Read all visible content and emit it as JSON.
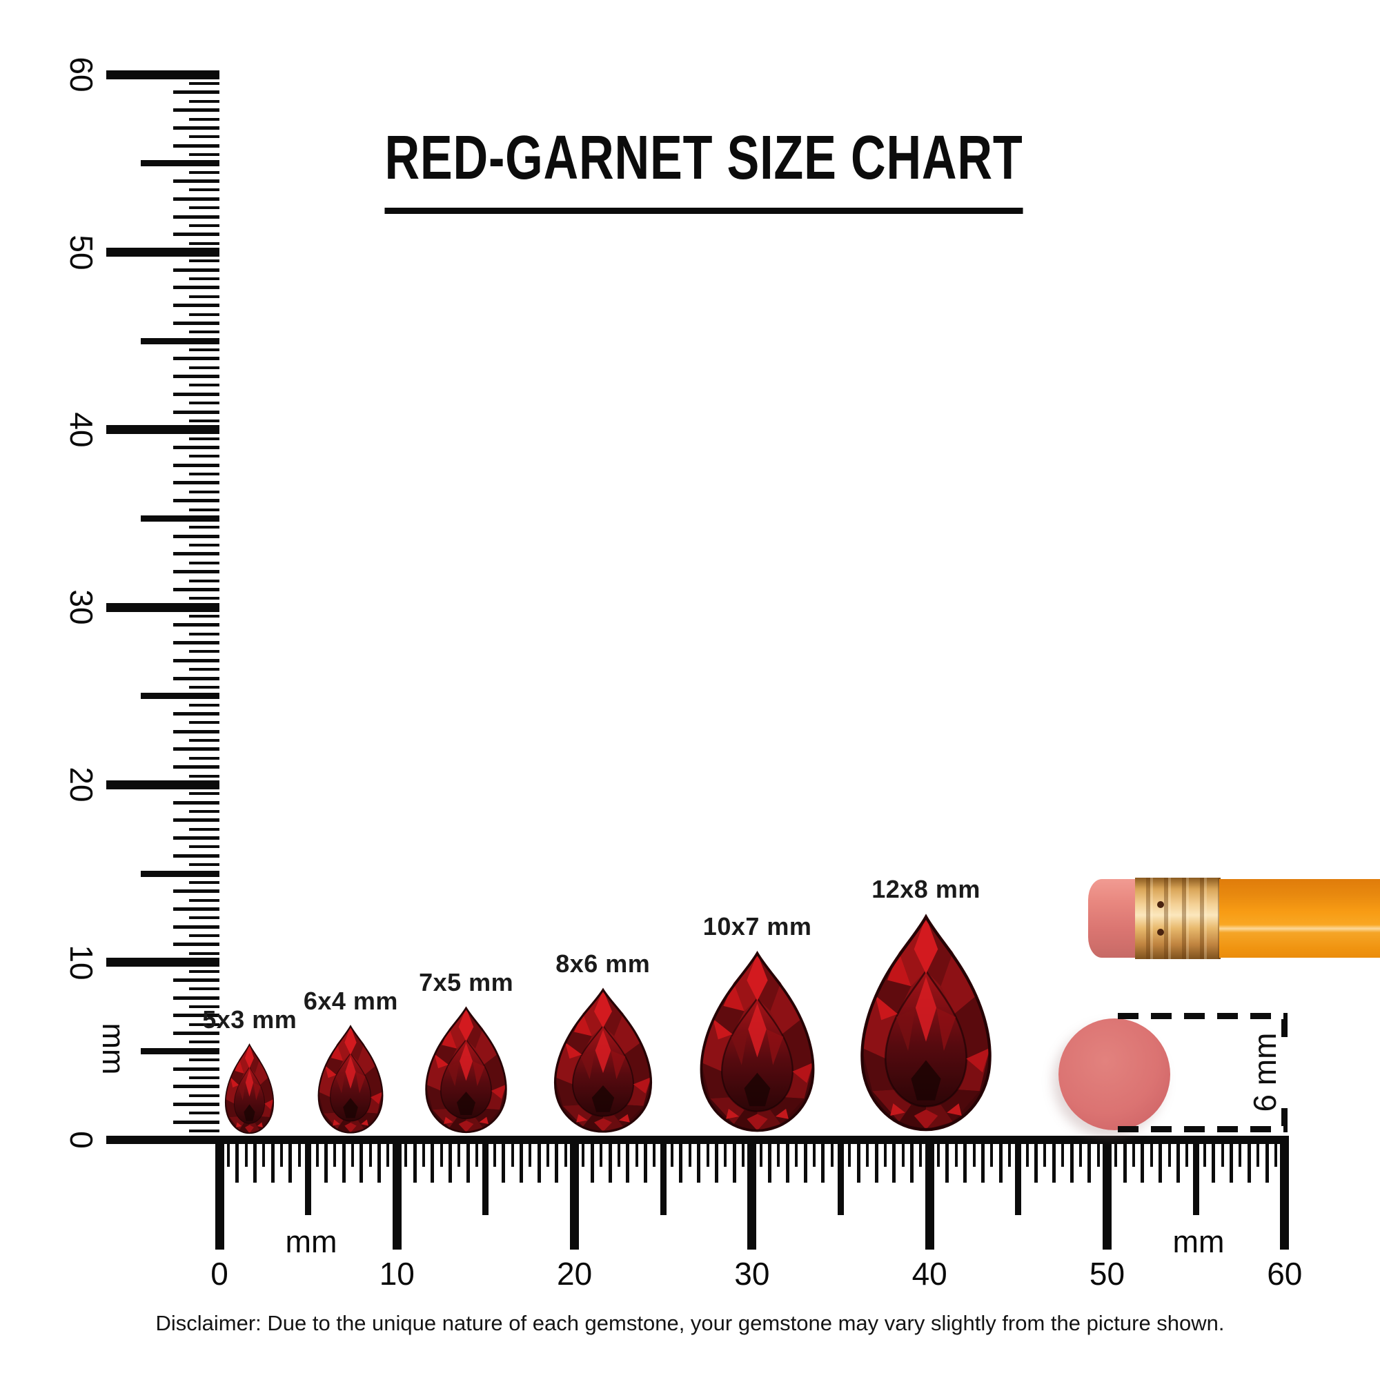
{
  "title": "RED-GARNET SIZE CHART",
  "disclaimer": "Disclaimer: Due to the unique nature of each gemstone, your gemstone may vary slightly from the picture shown.",
  "rulers": {
    "unit_label": "mm",
    "min_mm": 0,
    "max_mm": 60,
    "vertical_labels": [
      "0",
      "10",
      "20",
      "30",
      "40",
      "50",
      "60"
    ],
    "horizontal_labels": [
      "0",
      "10",
      "20",
      "30",
      "40",
      "50",
      "60"
    ]
  },
  "gems": [
    {
      "label": "5x3 mm",
      "width_mm": 3,
      "length_mm": 5,
      "center_mm": 1.7
    },
    {
      "label": "6x4 mm",
      "width_mm": 4,
      "length_mm": 6,
      "center_mm": 7.4
    },
    {
      "label": "7x5 mm",
      "width_mm": 5,
      "length_mm": 7,
      "center_mm": 13.9
    },
    {
      "label": "8x6 mm",
      "width_mm": 6,
      "length_mm": 8,
      "center_mm": 21.6
    },
    {
      "label": "10x7 mm",
      "width_mm": 7,
      "length_mm": 10,
      "center_mm": 30.3
    },
    {
      "label": "12x8 mm",
      "width_mm": 8,
      "length_mm": 12,
      "center_mm": 39.8
    }
  ],
  "eraser_reference": {
    "label": "6 mm",
    "diameter_mm": 6
  },
  "chart_data": {
    "type": "table",
    "title": "RED-GARNET SIZE CHART",
    "categories": [
      "5x3 mm",
      "6x4 mm",
      "7x5 mm",
      "8x6 mm",
      "10x7 mm",
      "12x8 mm"
    ],
    "series": [
      {
        "name": "length_mm",
        "values": [
          5,
          6,
          7,
          8,
          10,
          12
        ]
      },
      {
        "name": "width_mm",
        "values": [
          3,
          4,
          5,
          6,
          7,
          8
        ]
      }
    ],
    "xlabel": "mm",
    "ylabel": "mm",
    "axis_range_mm": [
      0,
      60
    ],
    "reference_object": "pencil eraser 6 mm"
  },
  "colors": {
    "garnet_bright": "#d8191e",
    "garnet_mid": "#8e1014",
    "garnet_dark": "#3a060a",
    "eraser_pink": "#db7372",
    "pencil_orange": "#f89c14",
    "ferrule_gold": "#e8b96d",
    "ink": "#0b0b0b"
  }
}
